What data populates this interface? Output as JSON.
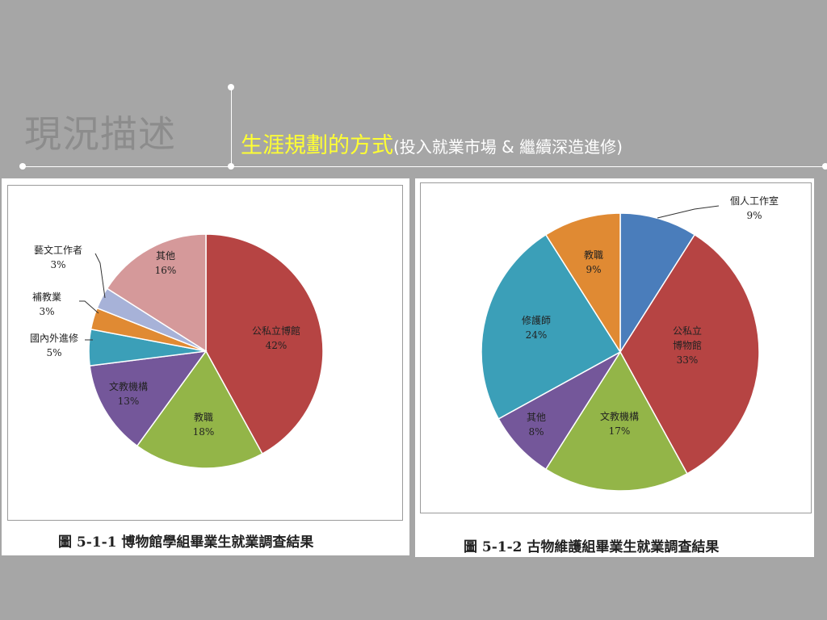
{
  "header": {
    "title": "現況描述",
    "subtitle_main": "生涯規劃的方式",
    "subtitle_note": "(投入就業市場 & 繼續深造進修)"
  },
  "colors": {
    "red": "#b64443",
    "green": "#93b548",
    "purple": "#74579a",
    "teal": "#3b9fb8",
    "orange": "#e08a33",
    "lilac": "#a7b2d8",
    "pink": "#d5999a",
    "blue": "#4a7dbb"
  },
  "chart_data": [
    {
      "type": "pie",
      "caption": "圖 5-1-1 博物館學組畢業生就業調查結果",
      "slices": [
        {
          "label": "公私立博館",
          "pct_text": "42%",
          "value": 42,
          "color": "#b64443"
        },
        {
          "label": "教職",
          "pct_text": "18%",
          "value": 18,
          "color": "#93b548"
        },
        {
          "label": "文教機構",
          "pct_text": "13%",
          "value": 13,
          "color": "#74579a"
        },
        {
          "label": "國內外進修",
          "pct_text": "5%",
          "value": 5,
          "color": "#3b9fb8"
        },
        {
          "label": "補教業",
          "pct_text": "3%",
          "value": 3,
          "color": "#e08a33"
        },
        {
          "label": "藝文工作者",
          "pct_text": "3%",
          "value": 3,
          "color": "#a7b2d8"
        },
        {
          "label": "其他",
          "pct_text": "16%",
          "value": 16,
          "color": "#d5999a"
        }
      ]
    },
    {
      "type": "pie",
      "caption": "圖 5-1-2 古物維護組畢業生就業調查結果",
      "slices": [
        {
          "label": "個人工作室",
          "pct_text": "9%",
          "value": 9,
          "color": "#4a7dbb"
        },
        {
          "label": "公私立博物館",
          "label_lines": [
            "公私立",
            "博物館"
          ],
          "pct_text": "33%",
          "value": 33,
          "color": "#b64443"
        },
        {
          "label": "文教機構",
          "pct_text": "17%",
          "value": 17,
          "color": "#93b548"
        },
        {
          "label": "其他",
          "pct_text": "8%",
          "value": 8,
          "color": "#74579a"
        },
        {
          "label": "修護師",
          "pct_text": "24%",
          "value": 24,
          "color": "#3b9fb8"
        },
        {
          "label": "教職",
          "pct_text": "9%",
          "value": 9,
          "color": "#e08a33"
        }
      ]
    }
  ]
}
